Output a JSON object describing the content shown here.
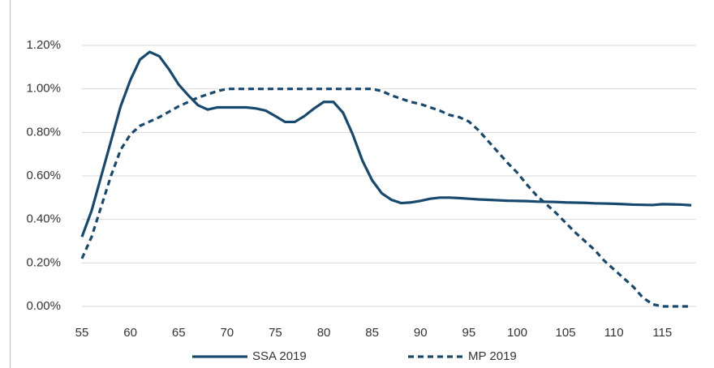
{
  "chart_data": {
    "type": "line",
    "x": [
      55,
      56,
      57,
      58,
      59,
      60,
      61,
      62,
      63,
      64,
      65,
      66,
      67,
      68,
      69,
      70,
      71,
      72,
      73,
      74,
      75,
      76,
      77,
      78,
      79,
      80,
      81,
      82,
      83,
      84,
      85,
      86,
      87,
      88,
      89,
      90,
      91,
      92,
      93,
      94,
      95,
      96,
      97,
      98,
      99,
      100,
      101,
      102,
      103,
      104,
      105,
      106,
      107,
      108,
      109,
      110,
      111,
      112,
      113,
      114,
      115,
      116,
      117,
      118
    ],
    "series": [
      {
        "name": "SSA 2019",
        "color": "#17496f",
        "dash": false,
        "values": [
          0.32,
          0.44,
          0.6,
          0.76,
          0.92,
          1.04,
          1.135,
          1.17,
          1.15,
          1.09,
          1.02,
          0.97,
          0.925,
          0.905,
          0.915,
          0.915,
          0.915,
          0.915,
          0.91,
          0.9,
          0.875,
          0.848,
          0.848,
          0.875,
          0.91,
          0.94,
          0.94,
          0.89,
          0.79,
          0.67,
          0.58,
          0.52,
          0.49,
          0.475,
          0.478,
          0.485,
          0.495,
          0.5,
          0.5,
          0.498,
          0.495,
          0.492,
          0.49,
          0.488,
          0.486,
          0.485,
          0.484,
          0.482,
          0.481,
          0.48,
          0.478,
          0.477,
          0.476,
          0.474,
          0.473,
          0.472,
          0.47,
          0.468,
          0.467,
          0.466,
          0.47,
          0.469,
          0.468,
          0.465
        ]
      },
      {
        "name": "MP 2019",
        "color": "#17496f",
        "dash": true,
        "values": [
          0.22,
          0.32,
          0.46,
          0.6,
          0.72,
          0.79,
          0.83,
          0.85,
          0.87,
          0.895,
          0.92,
          0.94,
          0.96,
          0.975,
          0.99,
          1.0,
          1.0,
          1.0,
          1.0,
          1.0,
          1.0,
          1.0,
          1.0,
          1.0,
          1.0,
          1.0,
          1.0,
          1.0,
          1.0,
          1.0,
          1.0,
          0.99,
          0.97,
          0.955,
          0.94,
          0.93,
          0.915,
          0.9,
          0.88,
          0.87,
          0.85,
          0.81,
          0.76,
          0.71,
          0.66,
          0.615,
          0.56,
          0.51,
          0.47,
          0.43,
          0.385,
          0.34,
          0.3,
          0.26,
          0.21,
          0.17,
          0.13,
          0.09,
          0.04,
          0.01,
          0,
          0,
          0,
          0
        ]
      }
    ],
    "xlim": [
      55,
      118.5
    ],
    "xticks": [
      55,
      60,
      65,
      70,
      75,
      80,
      85,
      90,
      95,
      100,
      105,
      110,
      115
    ],
    "ylim": [
      0,
      1.2
    ],
    "yticks": [
      {
        "value": 0,
        "label": "0.00%"
      },
      {
        "value": 0.2,
        "label": "0.20%"
      },
      {
        "value": 0.4,
        "label": "0.40%"
      },
      {
        "value": 0.6,
        "label": "0.60%"
      },
      {
        "value": 0.8,
        "label": "0.80%"
      },
      {
        "value": 1.0,
        "label": "1.00%"
      },
      {
        "value": 1.2,
        "label": "1.20%"
      }
    ],
    "grid": true,
    "legend": "bottom"
  }
}
